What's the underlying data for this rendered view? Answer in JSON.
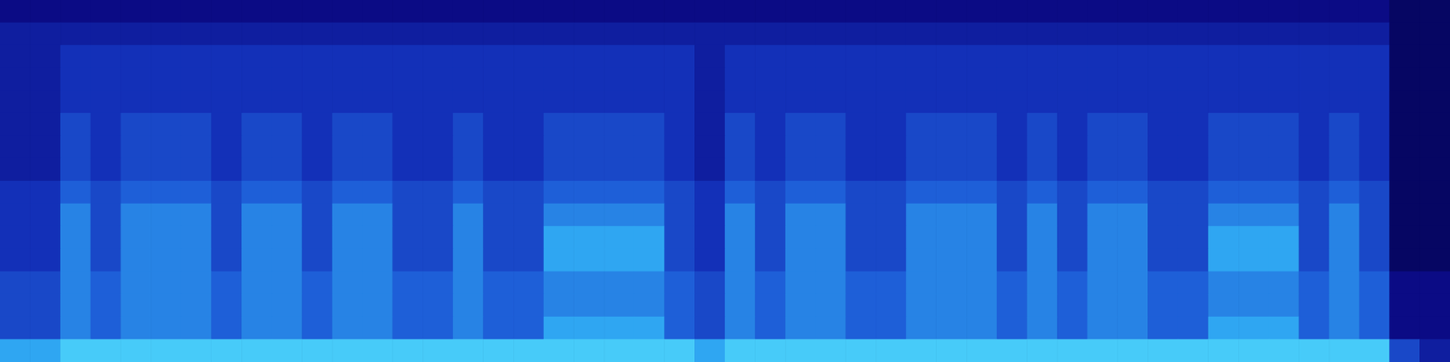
{
  "chart_data": {
    "type": "heatmap",
    "tick_labels": false,
    "zlim": [
      0,
      10
    ],
    "cells": [
      [
        2,
        2,
        2,
        2,
        2,
        2,
        2,
        2,
        2,
        2,
        2,
        2,
        2,
        2,
        2,
        2,
        2,
        2,
        2,
        2,
        2,
        2,
        2,
        2,
        2,
        2,
        2,
        2,
        2,
        2,
        2,
        2,
        2,
        2,
        2,
        2,
        2,
        2,
        2,
        2,
        2,
        2,
        2,
        2,
        2,
        2,
        1,
        1
      ],
      [
        3,
        3,
        3,
        3,
        3,
        3,
        3,
        3,
        3,
        3,
        3,
        3,
        3,
        3,
        3,
        3,
        3,
        3,
        3,
        3,
        3,
        3,
        3,
        3,
        3,
        3,
        3,
        3,
        3,
        3,
        3,
        3,
        3,
        3,
        3,
        3,
        3,
        3,
        3,
        3,
        3,
        3,
        3,
        3,
        3,
        3,
        1,
        1
      ],
      [
        3,
        3,
        4,
        4,
        4,
        4,
        4,
        4,
        4,
        4,
        4,
        4,
        4,
        4,
        4,
        4,
        4,
        4,
        4,
        4,
        4,
        4,
        4,
        3,
        4,
        4,
        4,
        4,
        4,
        4,
        4,
        4,
        4,
        4,
        4,
        4,
        4,
        4,
        4,
        4,
        4,
        4,
        4,
        4,
        4,
        4,
        1,
        1
      ],
      [
        3,
        3,
        4,
        4,
        4,
        4,
        4,
        4,
        4,
        4,
        4,
        4,
        4,
        4,
        4,
        4,
        4,
        4,
        4,
        4,
        4,
        4,
        4,
        3,
        4,
        4,
        4,
        4,
        4,
        4,
        4,
        4,
        4,
        4,
        4,
        4,
        4,
        4,
        4,
        4,
        4,
        4,
        4,
        4,
        4,
        4,
        1,
        1
      ],
      [
        3,
        3,
        4,
        4,
        4,
        4,
        4,
        4,
        4,
        4,
        4,
        4,
        4,
        4,
        4,
        4,
        4,
        4,
        4,
        4,
        4,
        4,
        4,
        3,
        4,
        4,
        4,
        4,
        4,
        4,
        4,
        4,
        4,
        4,
        4,
        4,
        4,
        4,
        4,
        4,
        4,
        4,
        4,
        4,
        4,
        4,
        1,
        1
      ],
      [
        3,
        3,
        5,
        4,
        5,
        5,
        5,
        4,
        5,
        5,
        4,
        5,
        5,
        4,
        4,
        5,
        4,
        4,
        5,
        5,
        5,
        5,
        4,
        3,
        5,
        4,
        5,
        5,
        4,
        4,
        5,
        5,
        5,
        4,
        5,
        4,
        5,
        5,
        4,
        4,
        5,
        5,
        5,
        4,
        5,
        4,
        1,
        1
      ],
      [
        3,
        3,
        5,
        4,
        5,
        5,
        5,
        4,
        5,
        5,
        4,
        5,
        5,
        4,
        4,
        5,
        4,
        4,
        5,
        5,
        5,
        5,
        4,
        3,
        5,
        4,
        5,
        5,
        4,
        4,
        5,
        5,
        5,
        4,
        5,
        4,
        5,
        5,
        4,
        4,
        5,
        5,
        5,
        4,
        5,
        4,
        1,
        1
      ],
      [
        3,
        3,
        5,
        4,
        5,
        5,
        5,
        4,
        5,
        5,
        4,
        5,
        5,
        4,
        4,
        5,
        4,
        4,
        5,
        5,
        5,
        5,
        4,
        3,
        5,
        4,
        5,
        5,
        4,
        4,
        5,
        5,
        5,
        4,
        5,
        4,
        5,
        5,
        4,
        4,
        5,
        5,
        5,
        4,
        5,
        4,
        1,
        1
      ],
      [
        4,
        4,
        6,
        5,
        6,
        6,
        6,
        5,
        6,
        6,
        5,
        6,
        6,
        5,
        5,
        6,
        5,
        5,
        6,
        6,
        6,
        6,
        5,
        4,
        6,
        5,
        6,
        6,
        5,
        5,
        6,
        6,
        6,
        5,
        6,
        5,
        6,
        6,
        5,
        5,
        6,
        6,
        6,
        5,
        6,
        5,
        1,
        1
      ],
      [
        4,
        4,
        7,
        5,
        7,
        7,
        7,
        5,
        7,
        7,
        5,
        7,
        7,
        5,
        5,
        7,
        5,
        5,
        7,
        7,
        7,
        7,
        5,
        4,
        7,
        5,
        7,
        7,
        5,
        5,
        7,
        7,
        7,
        5,
        7,
        5,
        7,
        7,
        5,
        5,
        7,
        7,
        7,
        5,
        7,
        5,
        1,
        1
      ],
      [
        4,
        4,
        7,
        5,
        7,
        7,
        7,
        5,
        7,
        7,
        5,
        7,
        7,
        5,
        5,
        7,
        5,
        5,
        8,
        8,
        8,
        8,
        5,
        4,
        7,
        5,
        7,
        7,
        5,
        5,
        7,
        7,
        7,
        5,
        7,
        5,
        7,
        7,
        5,
        5,
        8,
        8,
        8,
        5,
        7,
        5,
        1,
        1
      ],
      [
        4,
        4,
        7,
        5,
        7,
        7,
        7,
        5,
        7,
        7,
        5,
        7,
        7,
        5,
        5,
        7,
        5,
        5,
        8,
        8,
        8,
        8,
        5,
        4,
        7,
        5,
        7,
        7,
        5,
        5,
        7,
        7,
        7,
        5,
        7,
        5,
        7,
        7,
        5,
        5,
        8,
        8,
        8,
        5,
        7,
        5,
        1,
        1
      ],
      [
        5,
        5,
        7,
        6,
        7,
        7,
        7,
        6,
        7,
        7,
        6,
        7,
        7,
        6,
        6,
        7,
        6,
        6,
        7,
        7,
        7,
        7,
        6,
        5,
        7,
        6,
        7,
        7,
        6,
        6,
        7,
        7,
        7,
        6,
        7,
        6,
        7,
        7,
        6,
        6,
        7,
        7,
        7,
        6,
        7,
        6,
        2,
        2
      ],
      [
        5,
        5,
        7,
        6,
        7,
        7,
        7,
        6,
        7,
        7,
        6,
        7,
        7,
        6,
        6,
        7,
        6,
        6,
        7,
        7,
        7,
        7,
        6,
        5,
        7,
        6,
        7,
        7,
        6,
        6,
        7,
        7,
        7,
        6,
        7,
        6,
        7,
        7,
        6,
        6,
        7,
        7,
        7,
        6,
        7,
        6,
        2,
        2
      ],
      [
        5,
        5,
        7,
        6,
        7,
        7,
        7,
        6,
        7,
        7,
        6,
        7,
        7,
        6,
        6,
        7,
        6,
        6,
        8,
        8,
        8,
        8,
        6,
        5,
        7,
        6,
        7,
        7,
        6,
        6,
        7,
        7,
        7,
        6,
        7,
        6,
        7,
        7,
        6,
        6,
        8,
        8,
        8,
        6,
        7,
        6,
        2,
        2
      ],
      [
        8,
        8,
        9,
        9,
        9,
        9,
        9,
        9,
        9,
        9,
        9,
        9,
        9,
        9,
        9,
        9,
        9,
        9,
        9,
        9,
        9,
        9,
        9,
        8,
        9,
        9,
        9,
        9,
        9,
        9,
        9,
        9,
        9,
        9,
        9,
        9,
        9,
        9,
        9,
        9,
        9,
        9,
        9,
        9,
        9,
        9,
        5,
        3
      ]
    ]
  }
}
